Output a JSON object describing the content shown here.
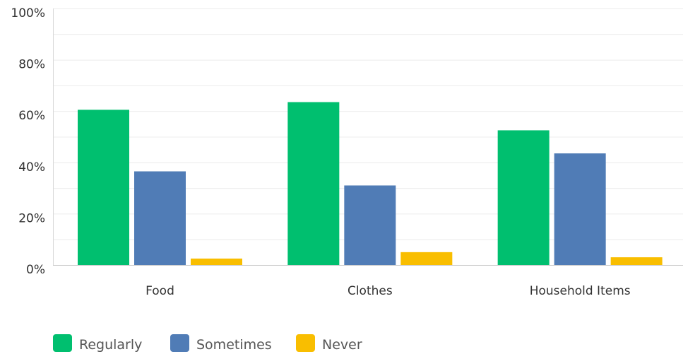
{
  "chart_data": {
    "type": "bar",
    "categories": [
      "Food",
      "Clothes",
      "Household Items"
    ],
    "series": [
      {
        "name": "Regularly",
        "color": "#00BF6F",
        "values": [
          60.5,
          63.5,
          52.5
        ]
      },
      {
        "name": "Sometimes",
        "color": "#507CB6",
        "values": [
          36.5,
          31,
          43.5
        ]
      },
      {
        "name": "Never",
        "color": "#F9BE00",
        "values": [
          2.5,
          5,
          3
        ]
      }
    ],
    "ylim": [
      0,
      100
    ],
    "yticks": [
      "0%",
      "20%",
      "40%",
      "60%",
      "80%",
      "100%"
    ],
    "ytick_values": [
      0,
      20,
      40,
      60,
      80,
      100
    ],
    "grid": true,
    "legend_position": "bottom-left"
  }
}
